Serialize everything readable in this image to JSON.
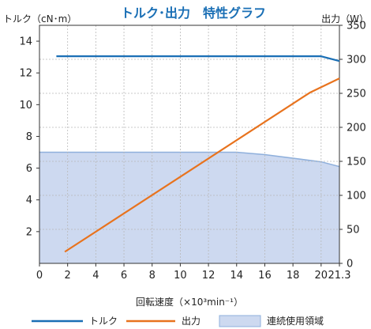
{
  "chart_data": {
    "type": "line",
    "title": "トルク･出力　特性グラフ",
    "xlabel": "回転速度（×10³min⁻¹）",
    "ylabel_left": "トルク（cN･m）",
    "ylabel_right": "出力（W）",
    "x_ticks": [
      "0",
      "2",
      "4",
      "6",
      "8",
      "10",
      "12",
      "14",
      "16",
      "18",
      "20",
      "21.3"
    ],
    "x_tick_values": [
      0,
      2,
      4,
      6,
      8,
      10,
      12,
      14,
      16,
      18,
      20,
      21.3
    ],
    "xlim": [
      0,
      21.3
    ],
    "y_left_ticks": [
      "2",
      "4",
      "6",
      "8",
      "10",
      "12",
      "14"
    ],
    "y_left_tick_values": [
      2,
      4,
      6,
      8,
      10,
      12,
      14
    ],
    "ylim_left": [
      0,
      15
    ],
    "y_right_ticks": [
      "0",
      "50",
      "100",
      "150",
      "200",
      "250",
      "300",
      "350"
    ],
    "y_right_tick_values": [
      0,
      50,
      100,
      150,
      200,
      250,
      300,
      350
    ],
    "ylim_right": [
      0,
      350
    ],
    "grid": true,
    "legend_position": "bottom",
    "series": [
      {
        "name": "トルク",
        "axis": "left",
        "color": "#1a6fb5",
        "x": [
          1.2,
          20.0,
          21.3
        ],
        "y": [
          13.05,
          13.05,
          12.75
        ]
      },
      {
        "name": "出力",
        "axis": "right",
        "color": "#e8731e",
        "x": [
          1.8,
          19.2,
          21.3
        ],
        "y": [
          17,
          251,
          272
        ]
      }
    ],
    "area": {
      "name": "連続使用領域",
      "axis": "left",
      "fill": "#cdd9f0",
      "stroke": "#8fb0dc",
      "x": [
        0,
        14.0,
        16.0,
        20.0,
        21.3
      ],
      "y": [
        7.0,
        7.0,
        6.85,
        6.4,
        6.1
      ]
    }
  }
}
